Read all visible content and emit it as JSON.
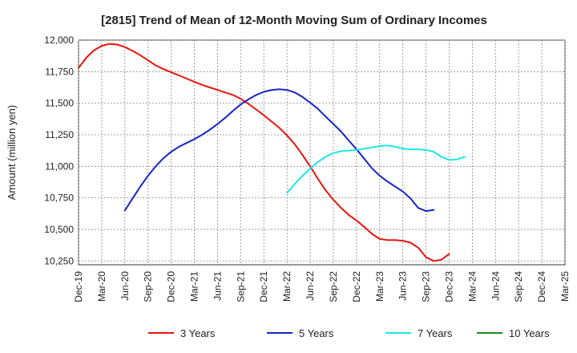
{
  "chart_data": {
    "type": "line",
    "title": "[2815]  Trend of Mean of 12-Month Moving Sum of Ordinary Incomes",
    "xlabel": "",
    "ylabel": "Amount (million yen)",
    "ylim": [
      10220,
      12000
    ],
    "yticks": [
      10250,
      10500,
      10750,
      11000,
      11250,
      11500,
      11750,
      12000
    ],
    "ytick_labels": [
      "10,250",
      "10,500",
      "10,750",
      "11,000",
      "11,250",
      "11,500",
      "11,750",
      "12,000"
    ],
    "x_categories": [
      "Dec-19",
      "Mar-20",
      "Jun-20",
      "Sep-20",
      "Dec-20",
      "Mar-21",
      "Jun-21",
      "Sep-21",
      "Dec-21",
      "Mar-22",
      "Jun-22",
      "Sep-22",
      "Dec-22",
      "Mar-23",
      "Jun-23",
      "Sep-23",
      "Dec-23",
      "Mar-24",
      "Jun-24",
      "Sep-24",
      "Dec-24",
      "Mar-25"
    ],
    "grid": true,
    "legend_position": "bottom",
    "series": [
      {
        "name": "3 Years",
        "color": "#e8150e",
        "start_index": 0,
        "values": [
          11780,
          11860,
          11920,
          11955,
          11970,
          11965,
          11945,
          11915,
          11880,
          11840,
          11800,
          11770,
          11745,
          11720,
          11695,
          11670,
          11645,
          11625,
          11605,
          11585,
          11565,
          11535,
          11495,
          11450,
          11405,
          11355,
          11305,
          11245,
          11175,
          11090,
          11000,
          10900,
          10810,
          10735,
          10670,
          10615,
          10570,
          10520,
          10465,
          10425,
          10415,
          10415,
          10410,
          10395,
          10355,
          10280,
          10250,
          10260,
          10305
        ]
      },
      {
        "name": "5 Years",
        "color": "#1624c8",
        "start_index": 6,
        "values": [
          10650,
          10745,
          10840,
          10925,
          11000,
          11065,
          11115,
          11155,
          11185,
          11215,
          11250,
          11290,
          11335,
          11385,
          11440,
          11490,
          11530,
          11565,
          11590,
          11605,
          11610,
          11605,
          11585,
          11550,
          11505,
          11455,
          11395,
          11335,
          11275,
          11205,
          11135,
          11060,
          10985,
          10925,
          10880,
          10840,
          10800,
          10745,
          10670,
          10645,
          10655
        ]
      },
      {
        "name": "7 Years",
        "color": "#1ee6e6",
        "start_index": 27,
        "values": [
          10790,
          10860,
          10925,
          10980,
          11035,
          11075,
          11105,
          11120,
          11125,
          11130,
          11140,
          11150,
          11160,
          11165,
          11155,
          11140,
          11135,
          11135,
          11130,
          11115,
          11075,
          11050,
          11055,
          11075
        ]
      },
      {
        "name": "10 Years",
        "color": "#1e8a1e",
        "start_index": 0,
        "values": []
      }
    ]
  }
}
